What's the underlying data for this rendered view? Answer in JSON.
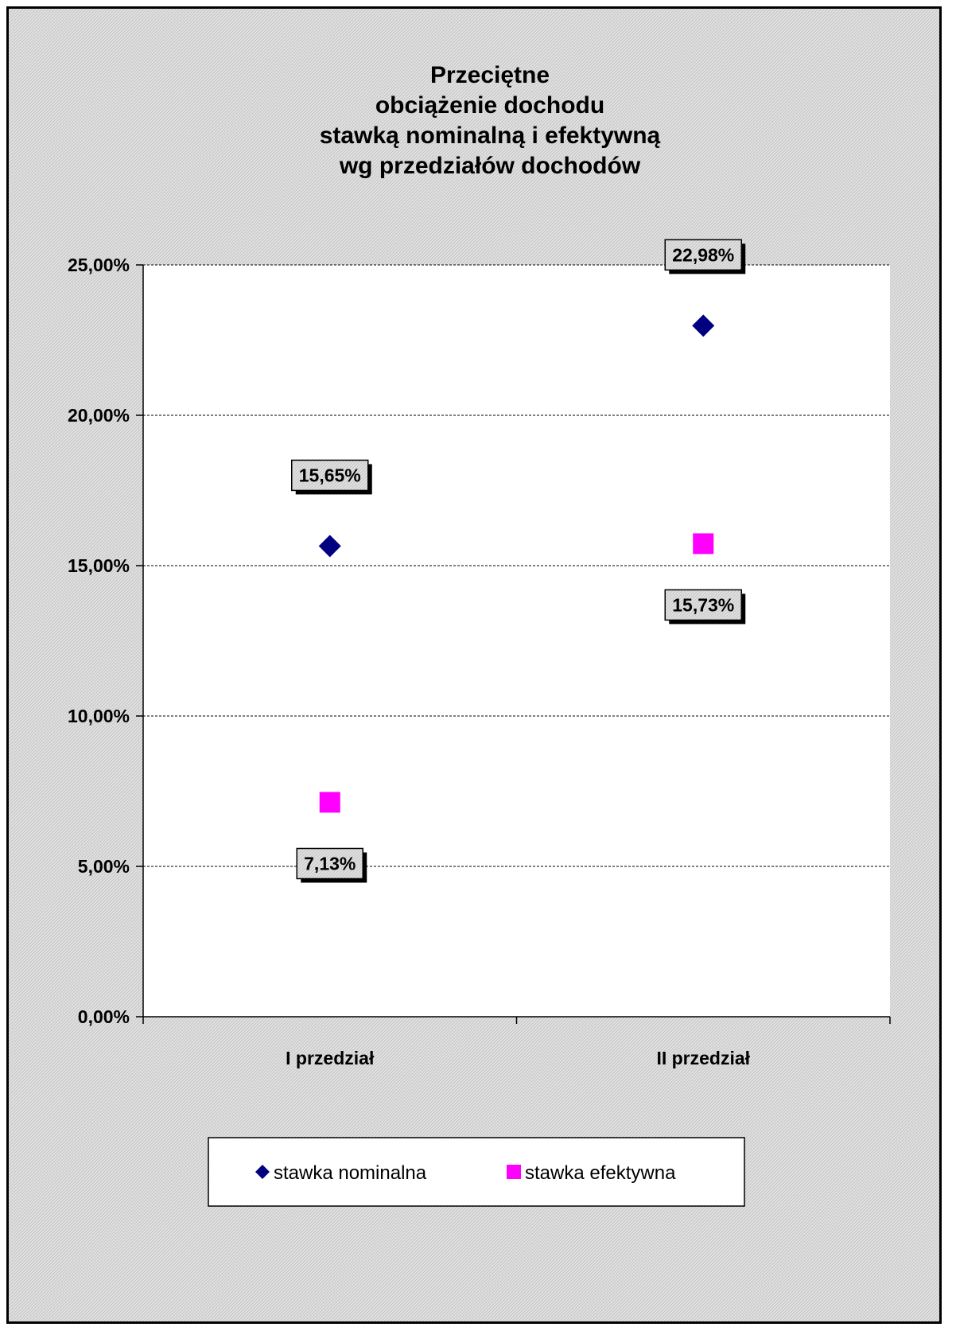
{
  "chart_data": {
    "type": "scatter",
    "title": [
      "Przeciętne",
      "obciążenie dochodu",
      "stawką nominalną i efektywną",
      "wg przedziałów dochodów"
    ],
    "categories": [
      "I przedział",
      "II przedział"
    ],
    "ylim": [
      0,
      0.25
    ],
    "yticks": [
      0,
      0.05,
      0.1,
      0.15,
      0.2,
      0.25
    ],
    "ytick_labels": [
      "0,00%",
      "5,00%",
      "10,00%",
      "15,00%",
      "20,00%",
      "25,00%"
    ],
    "grid": true,
    "legend_position": "bottom",
    "series": [
      {
        "name": "stawka nominalna",
        "marker": "diamond",
        "color": "#000080",
        "values": [
          0.1565,
          0.2298
        ],
        "labels": [
          "15,65%",
          "22,98%"
        ],
        "label_position": "above"
      },
      {
        "name": "stawka efektywna",
        "marker": "square",
        "color": "#FF00FF",
        "values": [
          0.0713,
          0.1573
        ],
        "labels": [
          "7,13%",
          "15,73%"
        ],
        "label_position": "below"
      }
    ]
  }
}
